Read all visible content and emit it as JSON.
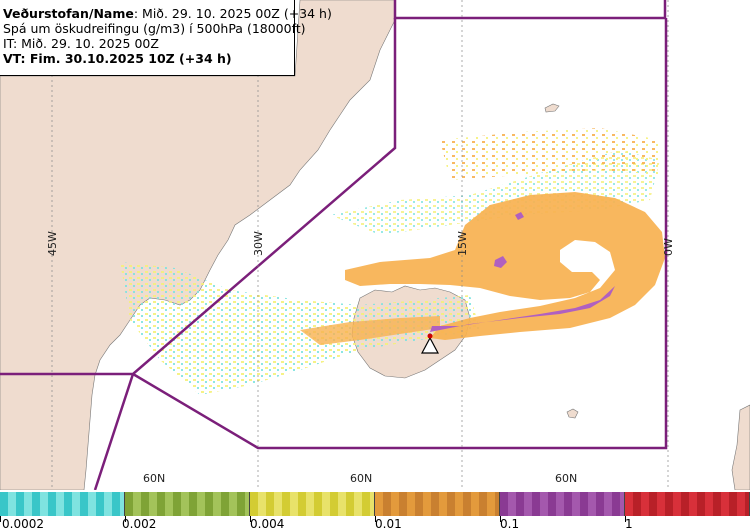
{
  "header": {
    "line1_bold": "Veðurstofan/Name",
    "line1_rest": ": Mið. 29. 10. 2025 00Z (+34 h)",
    "line2": "Spá um öskudreifingu (g/m3) í 500hPa (18000ft)",
    "line3": "IT: Mið. 29. 10. 2025 00Z",
    "line4": "VT: Fim. 30.10.2025 10Z (+34 h)"
  },
  "grid_labels": {
    "lon_45w": "45W",
    "lon_30w": "30W",
    "lon_15w": "15W",
    "lon_0w": "0W",
    "lat_1": "60N",
    "lat_2": "60N",
    "lat_3": "60N"
  },
  "legend": {
    "labels": [
      "0.0002",
      "0.002",
      "0.004",
      "0.01",
      "0.1",
      "1"
    ],
    "colors": [
      "#39c6c8",
      "#7fa336",
      "#d3cc33",
      "#e39a3c",
      "#8a3a93",
      "#d8303a"
    ]
  },
  "colors": {
    "land": "#efdccf",
    "sea": "#ffffff",
    "boundary": "#7b1f7a",
    "ash_orange": "#f7b150",
    "ash_purple": "#b060c0",
    "ash_yellow": "#f5f07a",
    "ash_cyan": "#7fe3e0"
  },
  "volcano_marker": "warning-triangle"
}
